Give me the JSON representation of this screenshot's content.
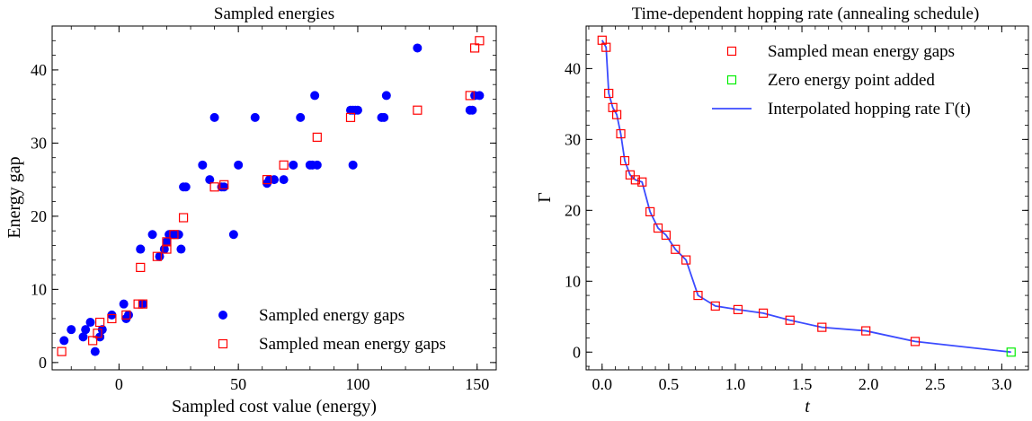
{
  "chart_data": [
    {
      "type": "scatter",
      "title": "Sampled energies",
      "xlabel": "Sampled cost value (energy)",
      "ylabel": "Energy gap",
      "xlim": [
        -28,
        158
      ],
      "ylim": [
        -1,
        46
      ],
      "xticks": [
        0,
        50,
        100,
        150
      ],
      "yticks": [
        0,
        10,
        20,
        30,
        40
      ],
      "legend_position": "lower-right",
      "series": [
        {
          "name": "Sampled energy gaps",
          "marker": "filled-circle",
          "color": "#0000ff",
          "x": [
            -23,
            -20,
            -15,
            -14,
            -12,
            -10,
            -8,
            -7,
            -3,
            2,
            3,
            4,
            9,
            9,
            10,
            14,
            17,
            19,
            20,
            21,
            23,
            25,
            26,
            27,
            28,
            35,
            38,
            40,
            43,
            44,
            48,
            50,
            57,
            62,
            63,
            65,
            69,
            73,
            76,
            80,
            81,
            82,
            83,
            97,
            98,
            98,
            99,
            100,
            110,
            111,
            112,
            125,
            147,
            148,
            149,
            151
          ],
          "y": [
            3,
            4.5,
            3.5,
            4.5,
            5.5,
            1.5,
            3.5,
            4.5,
            6.5,
            8,
            6,
            6.5,
            15.5,
            15.5,
            8,
            17.5,
            14.5,
            15.5,
            16.5,
            17.5,
            17.5,
            17.5,
            15.5,
            24,
            24,
            27,
            25,
            33.5,
            24,
            24,
            17.5,
            27,
            33.5,
            24.5,
            25,
            25,
            25,
            27,
            33.5,
            27,
            27,
            36.5,
            27,
            34.5,
            34.5,
            27,
            34.5,
            34.5,
            33.5,
            33.5,
            36.5,
            43,
            34.5,
            34.5,
            36.5,
            36.5
          ]
        },
        {
          "name": "Sampled mean energy gaps",
          "marker": "open-square",
          "color": "#ff0000",
          "x": [
            -24,
            -11,
            -9,
            -8,
            -3,
            3,
            8,
            10,
            9,
            16,
            20,
            20,
            23,
            27,
            40,
            44,
            62,
            69,
            83,
            97,
            125,
            147,
            149,
            151
          ],
          "y": [
            1.5,
            3,
            4,
            5.5,
            6,
            6.5,
            8,
            8,
            13,
            14.5,
            15.5,
            16.5,
            17.5,
            19.8,
            24,
            24.3,
            25,
            27,
            30.8,
            33.5,
            34.5,
            36.5,
            43,
            44
          ]
        }
      ]
    },
    {
      "type": "line",
      "title": "Time-dependent hopping rate (annealing schedule)",
      "xlabel": "t",
      "ylabel": "Γ",
      "xlim": [
        -0.12,
        3.2
      ],
      "ylim": [
        -2.5,
        46
      ],
      "xticks": [
        0.0,
        0.5,
        1.0,
        1.5,
        2.0,
        2.5,
        3.0
      ],
      "xtick_labels": [
        "0.0",
        "0.5",
        "1.0",
        "1.5",
        "2.0",
        "2.5",
        "3.0"
      ],
      "yticks": [
        0,
        10,
        20,
        30,
        40
      ],
      "legend_position": "upper-right",
      "series": [
        {
          "name": "Sampled mean energy gaps",
          "marker": "open-square",
          "color": "#ff0000",
          "x": [
            0.0,
            0.03,
            0.05,
            0.08,
            0.11,
            0.14,
            0.17,
            0.21,
            0.25,
            0.3,
            0.36,
            0.42,
            0.48,
            0.55,
            0.63,
            0.72,
            0.85,
            1.02,
            1.21,
            1.41,
            1.65,
            1.98,
            2.35
          ],
          "y": [
            44,
            43,
            36.5,
            34.5,
            33.5,
            30.8,
            27,
            25,
            24.3,
            24,
            19.8,
            17.5,
            16.5,
            14.5,
            13,
            8,
            6.5,
            6,
            5.5,
            4.5,
            3.5,
            3,
            1.5
          ]
        },
        {
          "name": "Zero energy point added",
          "marker": "open-square",
          "color": "#00ee00",
          "x": [
            3.07
          ],
          "y": [
            0
          ]
        },
        {
          "name": "Interpolated hopping rate Γ(t)",
          "marker": "line",
          "color": "#3b4bff",
          "x": [
            0.0,
            0.03,
            0.05,
            0.08,
            0.11,
            0.14,
            0.17,
            0.21,
            0.25,
            0.3,
            0.36,
            0.42,
            0.48,
            0.55,
            0.63,
            0.72,
            0.85,
            1.02,
            1.21,
            1.41,
            1.65,
            1.98,
            2.35,
            3.07
          ],
          "y": [
            44,
            43,
            36.5,
            34.5,
            33.5,
            30.8,
            27,
            25,
            24.3,
            24,
            19.8,
            17.5,
            16.5,
            14.5,
            13,
            8,
            6.5,
            6,
            5.5,
            4.5,
            3.5,
            3,
            1.5,
            0
          ]
        }
      ]
    }
  ]
}
